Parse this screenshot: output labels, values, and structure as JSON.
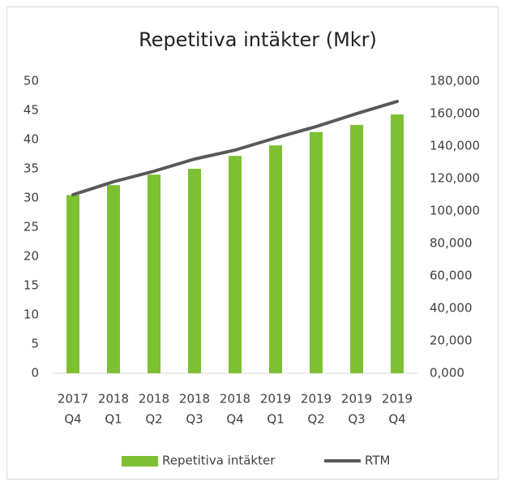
{
  "chart_data": {
    "type": "bar-line",
    "title": "Repetitiva intäkter (Mkr)",
    "categories": [
      [
        "2017",
        "Q4"
      ],
      [
        "2018",
        "Q1"
      ],
      [
        "2018",
        "Q2"
      ],
      [
        "2018",
        "Q3"
      ],
      [
        "2018",
        "Q4"
      ],
      [
        "2019",
        "Q1"
      ],
      [
        "2019",
        "Q2"
      ],
      [
        "2019",
        "Q3"
      ],
      [
        "2019",
        "Q4"
      ]
    ],
    "series": [
      {
        "name": "Repetitiva intäkter",
        "type": "bar",
        "color": "#7dc133",
        "values": [
          30.5,
          32.2,
          34,
          35,
          37.2,
          39,
          41.3,
          42.5,
          44.3
        ]
      },
      {
        "name": "RTM",
        "type": "line",
        "axis": "y2",
        "color": "#595959",
        "values": [
          110000,
          118000,
          124500,
          132000,
          137500,
          145000,
          152000,
          160000,
          167500
        ]
      }
    ],
    "ylim": [
      0,
      50
    ],
    "yticks": [
      0,
      5,
      10,
      15,
      20,
      25,
      30,
      35,
      40,
      45,
      50
    ],
    "y2lim": [
      0,
      180000
    ],
    "y2ticks": [
      {
        "value": 0,
        "label": "0,000"
      },
      {
        "value": 20000,
        "label": "20,000"
      },
      {
        "value": 40000,
        "label": "40,000"
      },
      {
        "value": 60000,
        "label": "60,000"
      },
      {
        "value": 80000,
        "label": "80,000"
      },
      {
        "value": 100000,
        "label": "100,000"
      },
      {
        "value": 120000,
        "label": "120,000"
      },
      {
        "value": 140000,
        "label": "140,000"
      },
      {
        "value": 160000,
        "label": "160,000"
      },
      {
        "value": 180000,
        "label": "180,000"
      }
    ],
    "legend": "bottom"
  }
}
